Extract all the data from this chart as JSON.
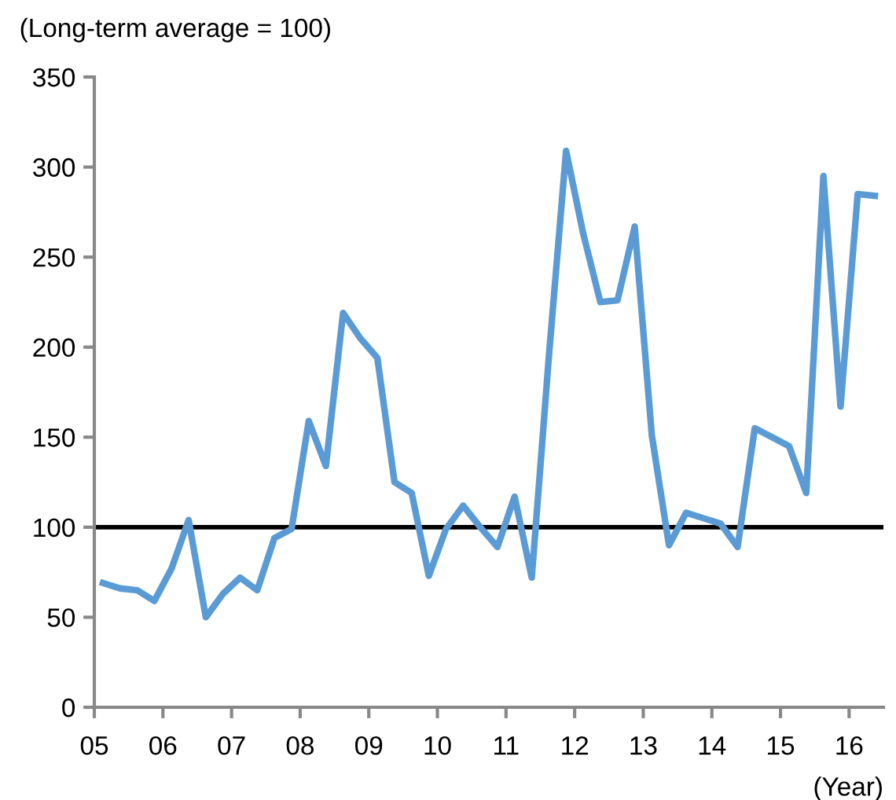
{
  "chart_data": {
    "type": "line",
    "ylabel": "(Long-term average = 100)",
    "xlabel": "(Year)",
    "x": [
      5.125,
      5.375,
      5.625,
      5.875,
      6.125,
      6.375,
      6.625,
      6.875,
      7.125,
      7.375,
      7.625,
      7.875,
      8.125,
      8.375,
      8.625,
      8.875,
      9.125,
      9.375,
      9.625,
      9.875,
      10.125,
      10.375,
      10.625,
      10.875,
      11.125,
      11.375,
      11.625,
      11.875,
      12.125,
      12.375,
      12.625,
      12.875,
      13.125,
      13.375,
      13.625,
      13.875,
      14.125,
      14.375,
      14.625,
      14.875,
      15.125,
      15.375,
      15.625,
      15.875,
      16.125,
      16.375
    ],
    "series": [
      {
        "color": "#5b9bd5",
        "values": [
          69,
          66,
          65,
          59,
          77,
          104,
          50,
          63,
          72,
          65,
          94,
          99,
          159,
          134,
          219,
          205,
          194,
          125,
          119,
          73,
          99,
          112,
          100,
          89,
          117,
          72,
          195,
          309,
          263,
          225,
          226,
          267,
          151,
          90,
          108,
          105,
          102,
          89,
          155,
          150,
          145,
          119,
          295,
          167,
          285,
          284
        ]
      }
    ],
    "xlim": [
      5,
      16.5
    ],
    "xticks": [
      {
        "value": 5,
        "label": "05"
      },
      {
        "value": 6,
        "label": "06"
      },
      {
        "value": 7,
        "label": "07"
      },
      {
        "value": 8,
        "label": "08"
      },
      {
        "value": 9,
        "label": "09"
      },
      {
        "value": 10,
        "label": "10"
      },
      {
        "value": 11,
        "label": "11"
      },
      {
        "value": 12,
        "label": "12"
      },
      {
        "value": 13,
        "label": "13"
      },
      {
        "value": 14,
        "label": "14"
      },
      {
        "value": 15,
        "label": "15"
      },
      {
        "value": 16,
        "label": "16"
      }
    ],
    "ylim": [
      0,
      350
    ],
    "yticks": [
      0,
      50,
      100,
      150,
      200,
      250,
      300,
      350
    ],
    "ref_lines": [
      {
        "axis": "y",
        "value": 100,
        "color": "#000000",
        "line_style": "solid"
      }
    ],
    "grid": false,
    "legend": false,
    "marker": "none",
    "line_style": "solid"
  }
}
